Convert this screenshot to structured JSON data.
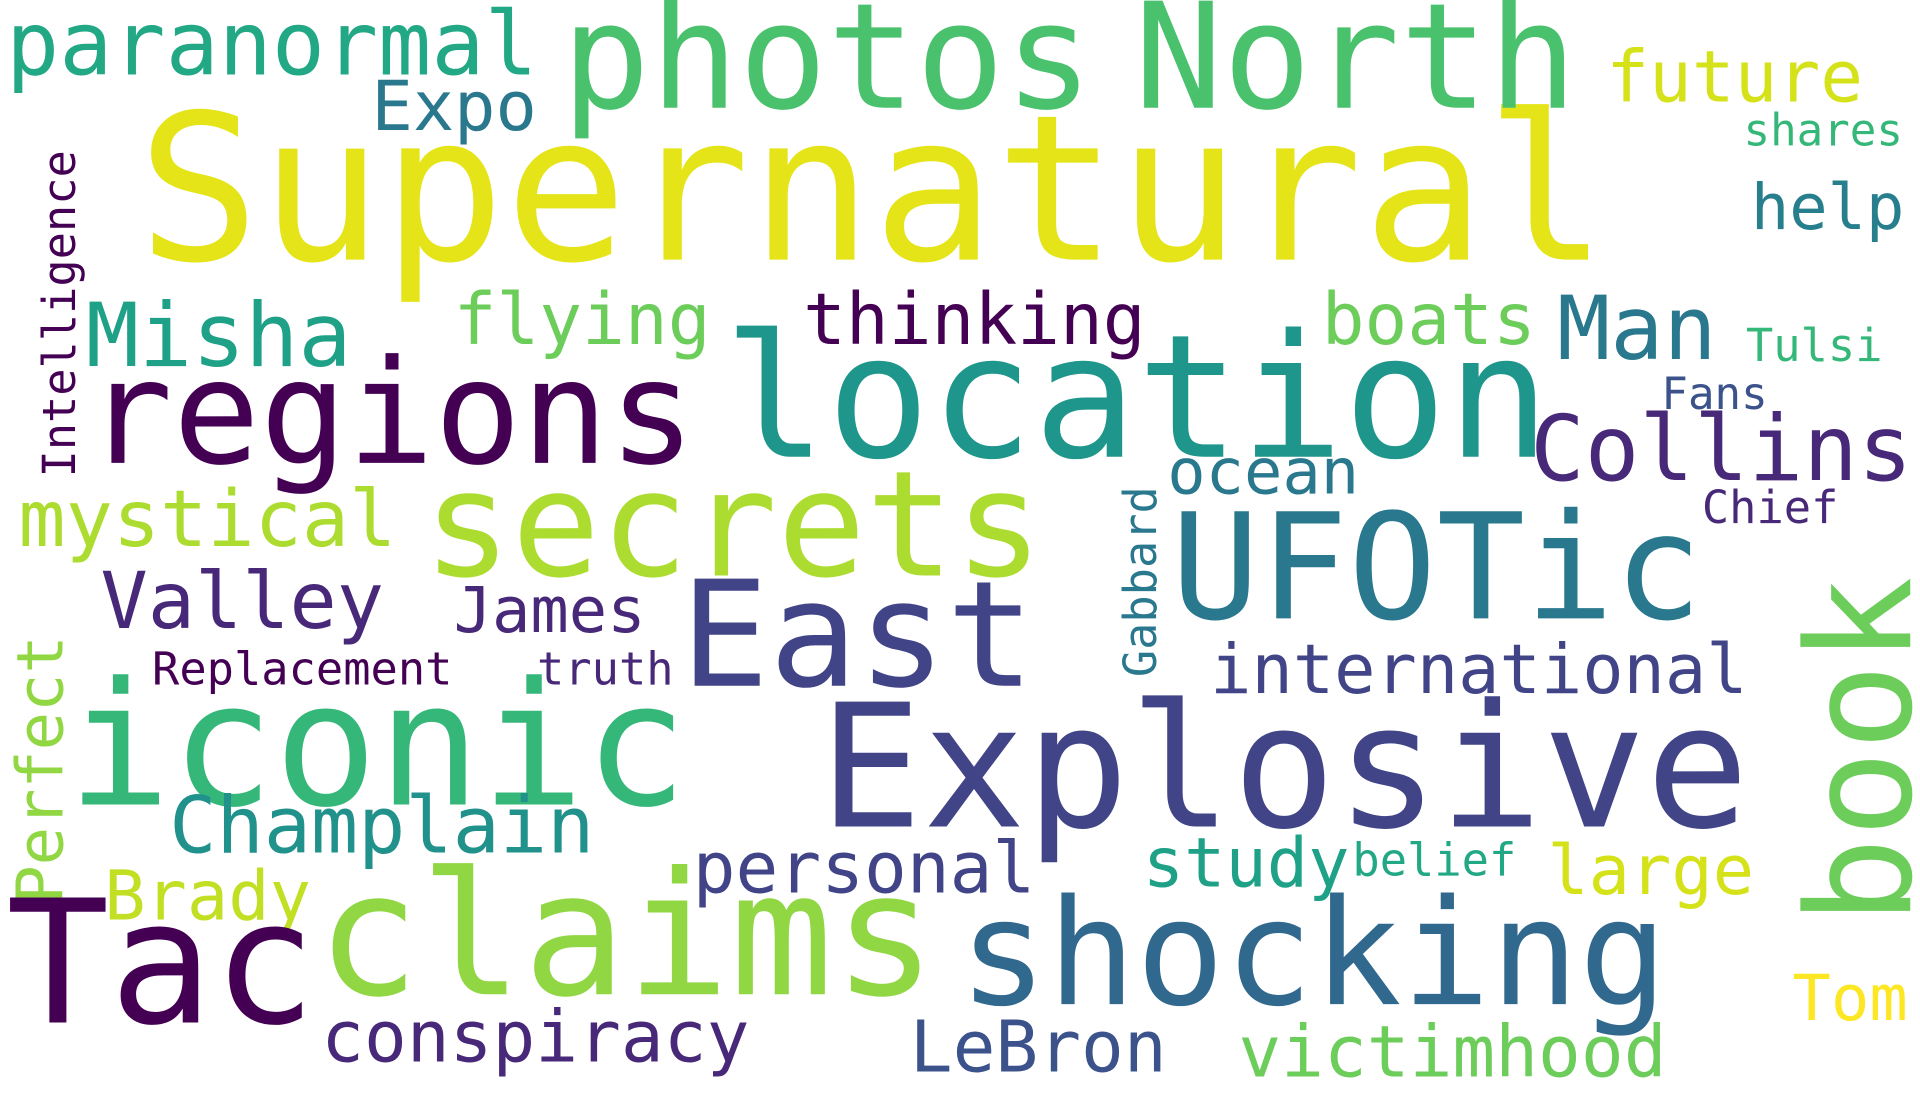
{
  "word_cloud": {
    "background": "#ffffff",
    "words": [
      {
        "text": "Supernatural",
        "color": "#e4e419"
      },
      {
        "text": "photos",
        "color": "#4ac16d"
      },
      {
        "text": "North",
        "color": "#4ac16d"
      },
      {
        "text": "paranormal",
        "color": "#22a884"
      },
      {
        "text": "future",
        "color": "#d5e21a"
      },
      {
        "text": "Expo",
        "color": "#2a788e"
      },
      {
        "text": "shares",
        "color": "#35b779"
      },
      {
        "text": "help",
        "color": "#277f8e"
      },
      {
        "text": "Intelligence",
        "color": "#440154"
      },
      {
        "text": "Misha",
        "color": "#1fa187"
      },
      {
        "text": "flying",
        "color": "#6ccd5a"
      },
      {
        "text": "thinking",
        "color": "#440154"
      },
      {
        "text": "boats",
        "color": "#6ccd5a"
      },
      {
        "text": "Man",
        "color": "#2a788e"
      },
      {
        "text": "Tulsi",
        "color": "#35b779"
      },
      {
        "text": "regions",
        "color": "#440154"
      },
      {
        "text": "location",
        "color": "#1f968b"
      },
      {
        "text": "Fans",
        "color": "#3b528b"
      },
      {
        "text": "Collins",
        "color": "#482878"
      },
      {
        "text": "ocean",
        "color": "#2a788e"
      },
      {
        "text": "mystical",
        "color": "#addc30"
      },
      {
        "text": "secrets",
        "color": "#addc30"
      },
      {
        "text": "Chief",
        "color": "#482878"
      },
      {
        "text": "UFOTic",
        "color": "#2a788e"
      },
      {
        "text": "Gabbard",
        "color": "#2a788e"
      },
      {
        "text": "Valley",
        "color": "#482878"
      },
      {
        "text": "James",
        "color": "#482878"
      },
      {
        "text": "East",
        "color": "#414487"
      },
      {
        "text": "book",
        "color": "#6ccd5a"
      },
      {
        "text": "Perfect",
        "color": "#90d743"
      },
      {
        "text": "Replacement",
        "color": "#440154"
      },
      {
        "text": "truth",
        "color": "#482878"
      },
      {
        "text": "international",
        "color": "#414487"
      },
      {
        "text": "iconic",
        "color": "#35b779"
      },
      {
        "text": "Explosive",
        "color": "#414487"
      },
      {
        "text": "Champlain",
        "color": "#21918c"
      },
      {
        "text": "personal",
        "color": "#414487"
      },
      {
        "text": "study",
        "color": "#1fa187"
      },
      {
        "text": "belief",
        "color": "#22a884"
      },
      {
        "text": "large",
        "color": "#d5e21a"
      },
      {
        "text": "Brady",
        "color": "#c2df23"
      },
      {
        "text": "Tac",
        "color": "#440154"
      },
      {
        "text": "claims",
        "color": "#90d743"
      },
      {
        "text": "shocking",
        "color": "#31688e"
      },
      {
        "text": "Tom",
        "color": "#fde725"
      },
      {
        "text": "conspiracy",
        "color": "#482878"
      },
      {
        "text": "LeBron",
        "color": "#3b528b"
      },
      {
        "text": "victimhood",
        "color": "#6ccd5a"
      }
    ]
  }
}
